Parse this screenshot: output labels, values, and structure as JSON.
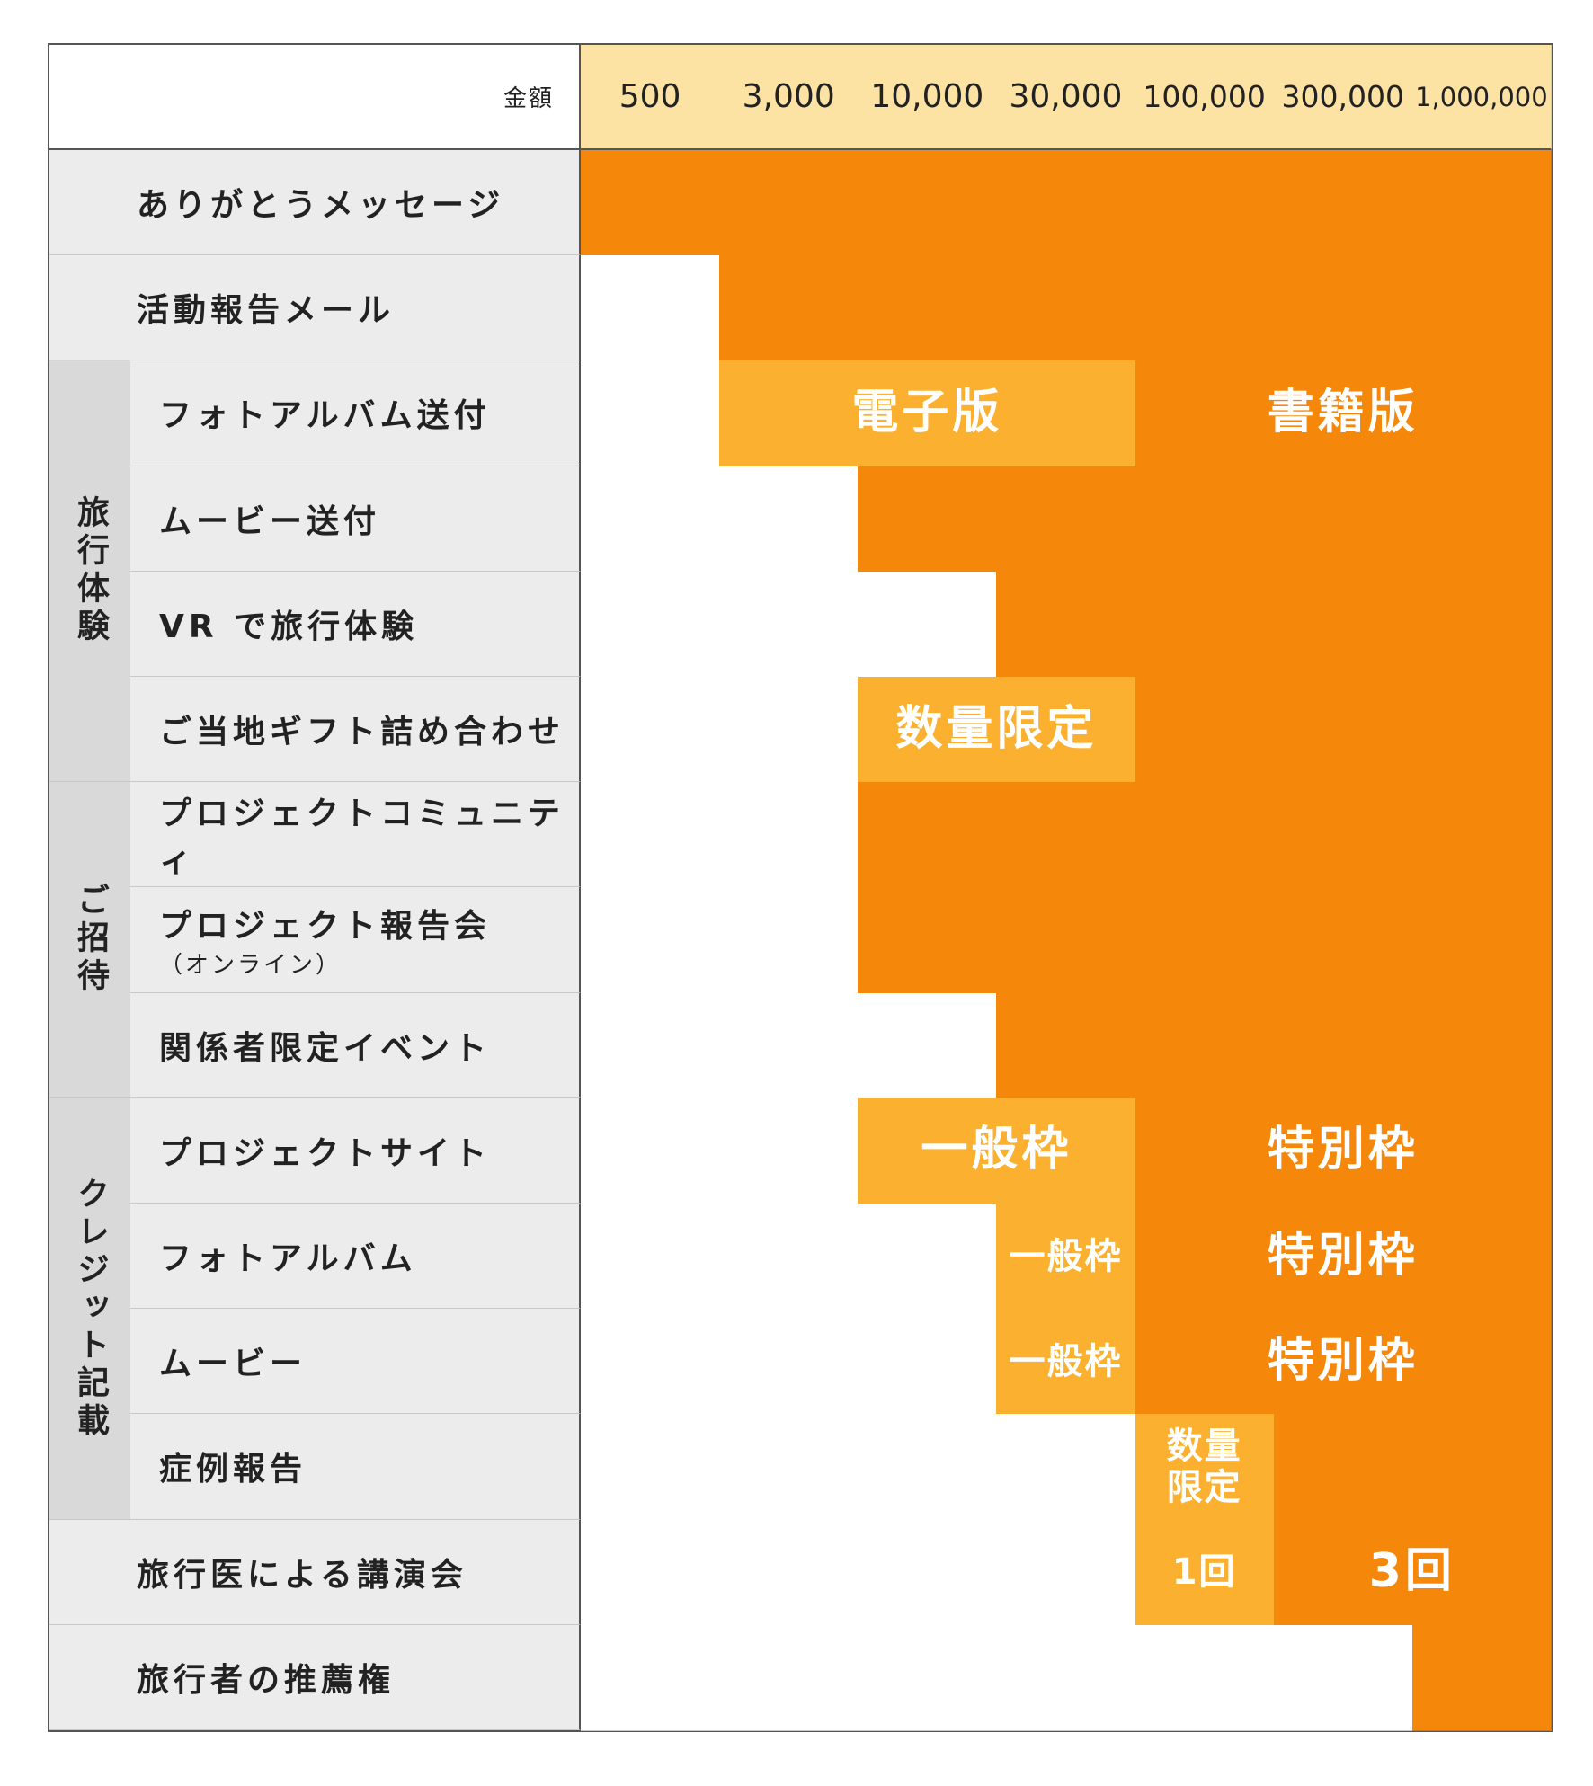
{
  "header": {
    "label": "金額",
    "amounts": [
      "500",
      "3,000",
      "10,000",
      "30,000",
      "100,000",
      "300,000",
      "1,000,000"
    ]
  },
  "palette": [
    "#ffffff",
    "#f5870a",
    "#fbb12f"
  ],
  "groups": [
    {
      "label": "旅行体験",
      "first": 2,
      "count": 4
    },
    {
      "label": "ご招待",
      "first": 6,
      "count": 3
    },
    {
      "label": "クレジット記載",
      "first": 9,
      "count": 4
    }
  ],
  "rows": [
    {
      "label": "ありがとうメッセージ",
      "cells": [
        1,
        1,
        1,
        1,
        1,
        1,
        1
      ]
    },
    {
      "label": "活動報告メール",
      "cells": [
        0,
        1,
        1,
        1,
        1,
        1,
        1
      ]
    },
    {
      "label": "フォトアルバム送付",
      "cells": [
        0,
        2,
        2,
        2,
        1,
        1,
        1
      ],
      "spans": [
        {
          "from": 1,
          "to": 3,
          "text": "電子版"
        },
        {
          "from": 4,
          "to": 6,
          "text": "書籍版"
        }
      ]
    },
    {
      "label": "ムービー送付",
      "cells": [
        0,
        0,
        1,
        1,
        1,
        1,
        1
      ]
    },
    {
      "label": "VR で旅行体験",
      "cells": [
        0,
        0,
        0,
        1,
        1,
        1,
        1
      ]
    },
    {
      "label": "ご当地ギフト詰め合わせ",
      "cells": [
        0,
        0,
        2,
        2,
        1,
        1,
        1
      ],
      "spans": [
        {
          "from": 2,
          "to": 3,
          "text": "数量限定"
        }
      ]
    },
    {
      "label": "プロジェクトコミュニティ",
      "cells": [
        0,
        0,
        1,
        1,
        1,
        1,
        1
      ]
    },
    {
      "label": "プロジェクト報告会",
      "sublabel": "（オンライン）",
      "cells": [
        0,
        0,
        1,
        1,
        1,
        1,
        1
      ]
    },
    {
      "label": "関係者限定イベント",
      "cells": [
        0,
        0,
        0,
        1,
        1,
        1,
        1
      ]
    },
    {
      "label": "プロジェクトサイト",
      "cells": [
        0,
        0,
        2,
        2,
        1,
        1,
        1
      ],
      "spans": [
        {
          "from": 2,
          "to": 3,
          "text": "一般枠"
        },
        {
          "from": 4,
          "to": 6,
          "text": "特別枠"
        }
      ]
    },
    {
      "label": "フォトアルバム",
      "cells": [
        0,
        0,
        0,
        2,
        1,
        1,
        1
      ],
      "spans": [
        {
          "from": 3,
          "to": 3,
          "text": "一般枠"
        },
        {
          "from": 4,
          "to": 6,
          "text": "特別枠"
        }
      ]
    },
    {
      "label": "ムービー",
      "cells": [
        0,
        0,
        0,
        2,
        1,
        1,
        1
      ],
      "spans": [
        {
          "from": 3,
          "to": 3,
          "text": "一般枠"
        },
        {
          "from": 4,
          "to": 6,
          "text": "特別枠"
        }
      ]
    },
    {
      "label": "症例報告",
      "cells": [
        0,
        0,
        0,
        0,
        2,
        1,
        1
      ],
      "spans": [
        {
          "from": 4,
          "to": 4,
          "text": "数量\n限定"
        }
      ]
    },
    {
      "label": "旅行医による講演会",
      "cells": [
        0,
        0,
        0,
        0,
        2,
        1,
        1
      ],
      "spans": [
        {
          "from": 4,
          "to": 4,
          "text": "1回"
        },
        {
          "from": 5,
          "to": 6,
          "text": "3回"
        }
      ]
    },
    {
      "label": "旅行者の推薦権",
      "cells": [
        0,
        0,
        0,
        0,
        0,
        0,
        1
      ]
    }
  ]
}
